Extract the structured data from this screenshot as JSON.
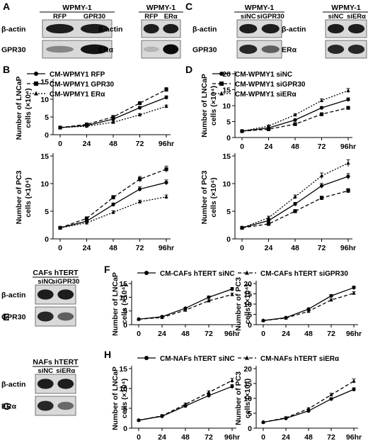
{
  "panel_letters": [
    "A",
    "B",
    "C",
    "D",
    "E",
    "F",
    "G",
    "H"
  ],
  "blots": [
    {
      "id": "A1",
      "header": "WPMY-1",
      "lanes": [
        "RFP",
        "GPR30"
      ],
      "rows": [
        {
          "label": "β-actin",
          "bands": [
            0.9,
            0.9
          ]
        },
        {
          "label": "GPR30",
          "bands": [
            0.35,
            0.95
          ]
        }
      ]
    },
    {
      "id": "A2",
      "header": "WPMY-1",
      "lanes": [
        "RFP",
        "ERα"
      ],
      "rows": [
        {
          "label": "β-actin",
          "bands": [
            0.9,
            0.9
          ]
        },
        {
          "label": "ERα",
          "bands": [
            0.1,
            1.0
          ]
        }
      ]
    },
    {
      "id": "C1",
      "header": "WPMY-1",
      "lanes": [
        "siNC",
        "siGPR30"
      ],
      "rows": [
        {
          "label": "β-actin",
          "bands": [
            0.9,
            0.9
          ]
        },
        {
          "label": "GPR30",
          "bands": [
            0.85,
            0.55
          ]
        }
      ]
    },
    {
      "id": "C2",
      "header": "WPMY-1",
      "lanes": [
        "siNC",
        "siERα"
      ],
      "rows": [
        {
          "label": "β-actin",
          "bands": [
            0.9,
            0.9
          ]
        },
        {
          "label": "ERα",
          "bands": [
            0.85,
            0.85
          ]
        }
      ]
    },
    {
      "id": "E",
      "header": "CAFs hTERT",
      "lanes": [
        "siNC",
        "siGPR30"
      ],
      "rows": [
        {
          "label": "β-actin",
          "bands": [
            0.9,
            0.9
          ]
        },
        {
          "label": "GPR30",
          "bands": [
            0.85,
            0.55
          ]
        }
      ]
    },
    {
      "id": "G",
      "header": "NAFs hTERT",
      "lanes": [
        "siNC",
        "siERα"
      ],
      "rows": [
        {
          "label": "β-actin",
          "bands": [
            0.9,
            0.9
          ]
        },
        {
          "label": "ERα",
          "bands": [
            0.85,
            0.5
          ]
        }
      ]
    }
  ],
  "legends": {
    "B": [
      "CM-WPMY1 RFP",
      "CM-WPMY1 GPR30",
      "CM-WPMY1 ERα"
    ],
    "D": [
      "CM-WPMY1 siNC",
      "CM-WPMY1 siGPR30",
      "CM-WPMY1 siERα"
    ],
    "F": [
      "CM-CAFs hTERT siNC",
      "CM-CAFs hTERT siGPR30"
    ],
    "H": [
      "CM-NAFs hTERT siNC",
      "CM-NAFs hTERT siERα"
    ]
  },
  "chart_data": [
    {
      "id": "B-LNCaP",
      "type": "line",
      "ylabel": "Number of LNCaP\ncells (×10⁴)",
      "x": [
        0,
        24,
        48,
        72,
        96
      ],
      "xticklabels": [
        "0",
        "24",
        "48",
        "72",
        "96hr"
      ],
      "ylim": [
        0,
        15
      ],
      "yticks": [
        0,
        5,
        10,
        15
      ],
      "series": [
        {
          "name": "CM-WPMY1 RFP",
          "marker": "circle",
          "dash": "solid",
          "values": [
            2.0,
            2.6,
            4.4,
            7.6,
            10.5
          ]
        },
        {
          "name": "CM-WPMY1 GPR30",
          "marker": "square",
          "dash": "dashed",
          "values": [
            2.0,
            2.9,
            5.0,
            8.9,
            12.7
          ]
        },
        {
          "name": "CM-WPMY1 ERα",
          "marker": "triangle",
          "dash": "dotted",
          "values": [
            2.0,
            2.4,
            3.5,
            5.6,
            8.0
          ]
        }
      ]
    },
    {
      "id": "B-PC3",
      "type": "line",
      "ylabel": "Number of PC3\ncells (×10⁴)",
      "x": [
        0,
        24,
        48,
        72,
        96
      ],
      "xticklabels": [
        "0",
        "24",
        "48",
        "72",
        "96hr"
      ],
      "ylim": [
        0,
        15
      ],
      "yticks": [
        0,
        5,
        10,
        15
      ],
      "series": [
        {
          "name": "CM-WPMY1 RFP",
          "marker": "circle",
          "dash": "solid",
          "values": [
            2.0,
            3.2,
            6.2,
            9.0,
            10.2
          ]
        },
        {
          "name": "CM-WPMY1 GPR30",
          "marker": "square",
          "dash": "dashed",
          "values": [
            2.0,
            3.7,
            7.5,
            10.8,
            12.6
          ]
        },
        {
          "name": "CM-WPMY1 ERα",
          "marker": "triangle",
          "dash": "dotted",
          "values": [
            2.0,
            2.9,
            4.8,
            6.7,
            7.6
          ]
        }
      ]
    },
    {
      "id": "D-LNCaP",
      "type": "line",
      "ylabel": "Number of LNCaP\ncells (×10⁴)",
      "x": [
        0,
        24,
        48,
        72,
        96
      ],
      "xticklabels": [
        "0",
        "24",
        "48",
        "72",
        "96hr"
      ],
      "ylim": [
        0,
        20
      ],
      "yticks": [
        0,
        5,
        10,
        15,
        20
      ],
      "series": [
        {
          "name": "CM-WPMY1 siNC",
          "marker": "circle",
          "dash": "solid",
          "values": [
            2.0,
            3.0,
            5.5,
            9.3,
            11.9
          ]
        },
        {
          "name": "CM-WPMY1 siGPR30",
          "marker": "square",
          "dash": "dashed",
          "values": [
            2.0,
            2.6,
            4.2,
            7.3,
            9.3
          ]
        },
        {
          "name": "CM-WPMY1 siERα",
          "marker": "triangle",
          "dash": "dotted",
          "values": [
            2.0,
            3.6,
            7.1,
            11.6,
            14.7
          ]
        }
      ]
    },
    {
      "id": "D-PC3",
      "type": "line",
      "ylabel": "Number of PC3\ncells (×10⁴)",
      "x": [
        0,
        24,
        48,
        72,
        96
      ],
      "xticklabels": [
        "0",
        "24",
        "48",
        "72",
        "96hr"
      ],
      "ylim": [
        0,
        15
      ],
      "yticks": [
        0,
        5,
        10,
        15
      ],
      "series": [
        {
          "name": "CM-WPMY1 siNC",
          "marker": "circle",
          "dash": "solid",
          "values": [
            2.0,
            3.3,
            6.3,
            9.6,
            11.3
          ]
        },
        {
          "name": "CM-WPMY1 siGPR30",
          "marker": "square",
          "dash": "dashed",
          "values": [
            2.0,
            2.7,
            5.0,
            7.4,
            8.7
          ]
        },
        {
          "name": "CM-WPMY1 siERα",
          "marker": "triangle",
          "dash": "dotted",
          "values": [
            2.0,
            3.8,
            7.6,
            11.4,
            13.7
          ]
        }
      ]
    },
    {
      "id": "F-LNCaP",
      "type": "line",
      "ylabel": "Number of LNCaP\ncells (×10⁴)",
      "x": [
        0,
        24,
        48,
        72,
        96
      ],
      "xticklabels": [
        "0",
        "24",
        "48",
        "72",
        "96hr"
      ],
      "ylim": [
        0,
        15
      ],
      "yticks": [
        0,
        5,
        10,
        15
      ],
      "series": [
        {
          "name": "CM-CAFs hTERT siNC",
          "marker": "circle",
          "dash": "solid",
          "values": [
            2.0,
            2.9,
            6.0,
            10.0,
            13.0
          ]
        },
        {
          "name": "CM-CAFs hTERT siGPR30",
          "marker": "triangle",
          "dash": "dashed",
          "values": [
            2.0,
            2.6,
            5.3,
            8.7,
            11.0
          ]
        }
      ]
    },
    {
      "id": "F-PC3",
      "type": "line",
      "ylabel": "Number of PC3\ncells (×10⁴)",
      "x": [
        0,
        24,
        48,
        72,
        96
      ],
      "xticklabels": [
        "0",
        "24",
        "48",
        "72",
        "96hr"
      ],
      "ylim": [
        0,
        20
      ],
      "yticks": [
        0,
        5,
        10,
        15,
        20
      ],
      "series": [
        {
          "name": "CM-CAFs hTERT siNC",
          "marker": "circle",
          "dash": "solid",
          "values": [
            2.0,
            3.4,
            7.6,
            14.0,
            18.0
          ]
        },
        {
          "name": "CM-CAFs hTERT siGPR30",
          "marker": "triangle",
          "dash": "dashed",
          "values": [
            2.0,
            3.2,
            6.5,
            12.0,
            15.3
          ]
        }
      ]
    },
    {
      "id": "H-LNCaP",
      "type": "line",
      "ylabel": "Number of LNCaP\ncells (×10⁴)",
      "x": [
        0,
        24,
        48,
        72,
        96
      ],
      "xticklabels": [
        "0",
        "24",
        "48",
        "72",
        "96hr"
      ],
      "ylim": [
        0,
        15
      ],
      "yticks": [
        0,
        5,
        10,
        15
      ],
      "series": [
        {
          "name": "CM-NAFs hTERT siNC",
          "marker": "circle",
          "dash": "solid",
          "values": [
            2.0,
            3.0,
            5.6,
            8.2,
            10.5
          ]
        },
        {
          "name": "CM-NAFs hTERT siERα",
          "marker": "triangle",
          "dash": "dashed",
          "values": [
            2.0,
            3.1,
            6.0,
            9.0,
            12.0
          ]
        }
      ]
    },
    {
      "id": "H-PC3",
      "type": "line",
      "ylabel": "Number of PC3\ncells (×10⁴)",
      "x": [
        0,
        24,
        48,
        72,
        96
      ],
      "xticklabels": [
        "0",
        "24",
        "48",
        "72",
        "96hr"
      ],
      "ylim": [
        0,
        20
      ],
      "yticks": [
        0,
        5,
        10,
        15,
        20
      ],
      "series": [
        {
          "name": "CM-NAFs hTERT siNC",
          "marker": "circle",
          "dash": "solid",
          "values": [
            2.0,
            3.3,
            5.8,
            9.8,
            13.0
          ]
        },
        {
          "name": "CM-NAFs hTERT siERα",
          "marker": "triangle",
          "dash": "dashed",
          "values": [
            2.0,
            3.5,
            6.5,
            11.2,
            15.8
          ]
        }
      ]
    }
  ]
}
